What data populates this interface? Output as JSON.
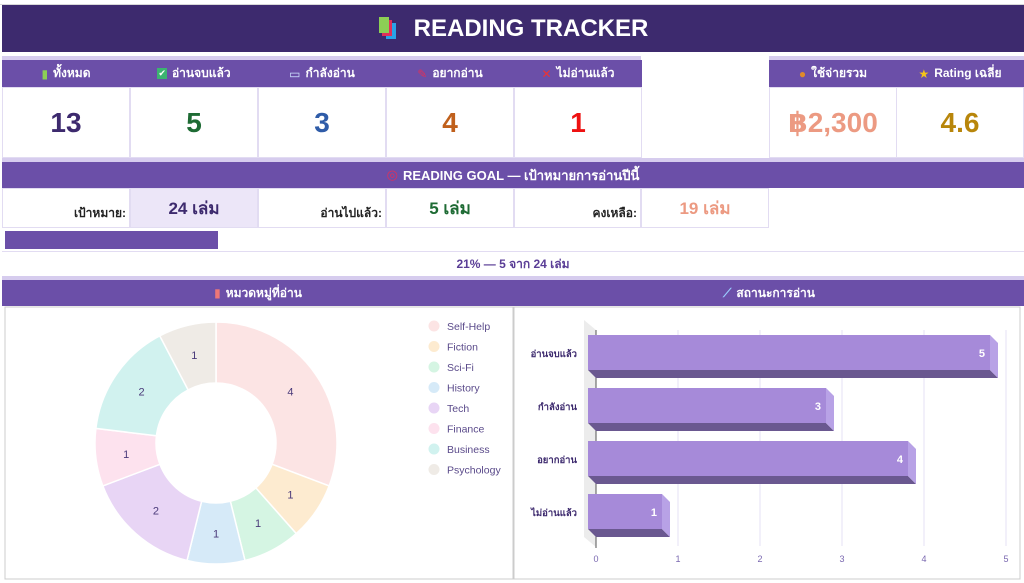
{
  "title": {
    "text": "READING TRACKER",
    "icon": "books-icon"
  },
  "stats": [
    {
      "label": "ทั้งหมด",
      "icon": "books-icon",
      "value": "13",
      "color": "#3d2a6e"
    },
    {
      "label": "อ่านจบแล้ว",
      "icon": "check-icon",
      "value": "5",
      "color": "#1e6b34"
    },
    {
      "label": "กำลังอ่าน",
      "icon": "open-book-icon",
      "value": "3",
      "color": "#2f5ca8"
    },
    {
      "label": "อยากอ่าน",
      "icon": "pin-icon",
      "value": "4",
      "color": "#c0601c"
    },
    {
      "label": "ไม่อ่านแล้ว",
      "icon": "cross-icon",
      "value": "1",
      "color": "#ee1111"
    }
  ],
  "spend": {
    "label": "ใช้จ่ายรวม",
    "icon": "money-bag-icon",
    "value": "฿2,300",
    "color": "#ec9a82"
  },
  "rating": {
    "label": "Rating เฉลี่ย",
    "icon": "star-icon",
    "value": "4.6",
    "color": "#b8860b"
  },
  "goal": {
    "header": "READING GOAL — เป้าหมายการอ่านปีนี้",
    "icon": "target-icon",
    "target_label": "เป้าหมาย:",
    "target_value": "24 เล่ม",
    "read_label": "อ่านไปแล้ว:",
    "read_value": "5 เล่ม",
    "remaining_label": "คงเหลือ:",
    "remaining_value": "19 เล่ม",
    "progress_percent": 21,
    "progress_text": "21%  —  5 จาก 24 เล่ม"
  },
  "sections": {
    "category_title": "หมวดหมู่ที่อ่าน",
    "category_icon": "bar-chart-icon",
    "status_title": "สถานะการอ่าน",
    "status_icon": "line-chart-icon"
  },
  "chart_data": [
    {
      "type": "pie",
      "variant": "donut",
      "categories": [
        "Self-Help",
        "Fiction",
        "Sci-Fi",
        "History",
        "Tech",
        "Finance",
        "Business",
        "Psychology"
      ],
      "values": [
        4,
        1,
        1,
        1,
        2,
        1,
        2,
        1
      ],
      "colors": [
        "#fce4e4",
        "#fdebd0",
        "#d5f5e3",
        "#d6eaf8",
        "#e8d5f5",
        "#fde2ee",
        "#d1f2ef",
        "#efebe6"
      ],
      "legend": "right"
    },
    {
      "type": "bar",
      "orientation": "horizontal",
      "categories": [
        "อ่านจบแล้ว",
        "กำลังอ่าน",
        "อยากอ่าน",
        "ไม่อ่านแล้ว"
      ],
      "values": [
        5,
        3,
        4,
        1
      ],
      "xlim": [
        0,
        5
      ],
      "ticks": [
        "0",
        "1",
        "2",
        "3",
        "4",
        "5"
      ],
      "color": "#a68ad9",
      "grid": true
    }
  ]
}
